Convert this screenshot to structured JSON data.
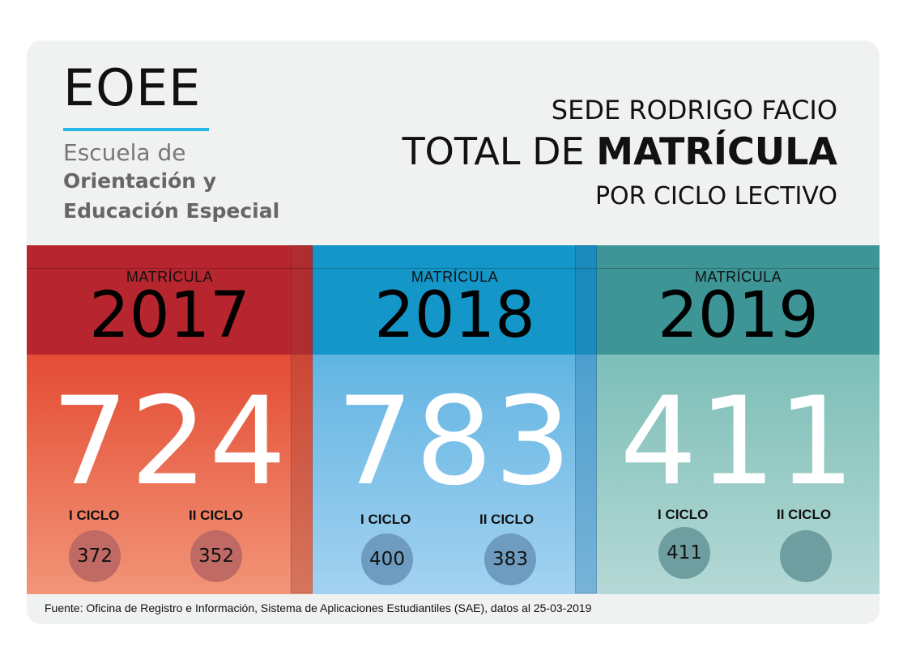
{
  "logo": {
    "acronym": "EOEE",
    "line1": "Escuela de",
    "line2": "Orientación y",
    "line3": "Educación Especial"
  },
  "header": {
    "line1": "SEDE RODRIGO FACIO",
    "line2_prefix": "TOTAL DE ",
    "line2_bold": "MATRÍCULA",
    "line3": "POR CICLO LECTIVO"
  },
  "panels": [
    {
      "label": "MATRÍCULA",
      "year": "2017",
      "total": "724",
      "ciclo1_label": "I CICLO",
      "ciclo1": "372",
      "ciclo2_label": "II CICLO",
      "ciclo2": "352",
      "color": "#df3328"
    },
    {
      "label": "MATRÍCULA",
      "year": "2018",
      "total": "783",
      "ciclo1_label": "I CICLO",
      "ciclo1": "400",
      "ciclo2_label": "II CICLO",
      "ciclo2": "383",
      "color": "#39a6dc"
    },
    {
      "label": "MATRÍCULA",
      "year": "2019",
      "total": "411",
      "ciclo1_label": "I CICLO",
      "ciclo1": "411",
      "ciclo2_label": "II CICLO",
      "ciclo2": "",
      "color": "#63b5ae"
    }
  ],
  "footer": "Fuente: Oficina de Registro e Información, Sistema de Aplicaciones Estudiantiles (SAE), datos al 25-03-2019"
}
